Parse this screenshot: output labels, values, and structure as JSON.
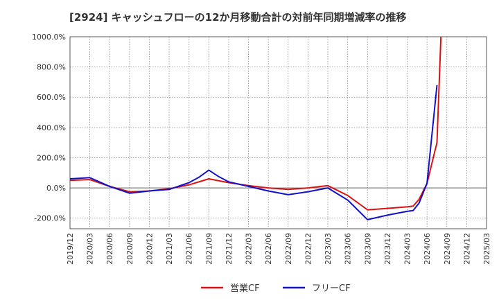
{
  "chart_data": {
    "type": "line",
    "title": "[2924]  キャッシュフローの12か月移動合計の対前年同期増減率の推移",
    "xlabel": "",
    "ylabel": "",
    "ylim": [
      -270,
      1000
    ],
    "yticks": [
      1000,
      800,
      600,
      400,
      200,
      0,
      -200
    ],
    "ytick_labels": [
      "1000.0%",
      "800.0%",
      "600.0%",
      "400.0%",
      "200.0%",
      "0.0%",
      "-200.0%"
    ],
    "x_tick_labels": [
      "2019/12",
      "2020/03",
      "2020/06",
      "2020/09",
      "2020/12",
      "2021/03",
      "2021/06",
      "2021/09",
      "2021/12",
      "2022/03",
      "2022/06",
      "2022/09",
      "2022/12",
      "2023/03",
      "2023/06",
      "2023/09",
      "2023/12",
      "2024/03",
      "2024/06",
      "2024/09",
      "2024/12",
      "2025/03"
    ],
    "grid": true,
    "legend_position": "bottom",
    "series": [
      {
        "name": "営業CF",
        "color": "#dd1111",
        "points": [
          [
            0,
            50
          ],
          [
            1,
            55
          ],
          [
            2,
            10
          ],
          [
            3,
            -25
          ],
          [
            4,
            -20
          ],
          [
            5,
            -5
          ],
          [
            6,
            20
          ],
          [
            7,
            60
          ],
          [
            8,
            35
          ],
          [
            9,
            15
          ],
          [
            10,
            0
          ],
          [
            11,
            -10
          ],
          [
            12,
            0
          ],
          [
            13,
            15
          ],
          [
            14,
            -50
          ],
          [
            15,
            -145
          ],
          [
            16,
            -135
          ],
          [
            17,
            -125
          ],
          [
            17.3,
            -120
          ],
          [
            17.6,
            -75
          ],
          [
            18.0,
            30
          ],
          [
            18.5,
            300
          ],
          [
            18.7,
            1000
          ]
        ]
      },
      {
        "name": "フリーCF",
        "color": "#1111cc",
        "points": [
          [
            0,
            60
          ],
          [
            1,
            68
          ],
          [
            2,
            10
          ],
          [
            3,
            -35
          ],
          [
            4,
            -20
          ],
          [
            5,
            -10
          ],
          [
            6,
            35
          ],
          [
            6.5,
            70
          ],
          [
            7,
            118
          ],
          [
            7.5,
            75
          ],
          [
            8,
            40
          ],
          [
            9,
            10
          ],
          [
            10,
            -20
          ],
          [
            11,
            -45
          ],
          [
            12,
            -25
          ],
          [
            13,
            0
          ],
          [
            14,
            -80
          ],
          [
            15,
            -210
          ],
          [
            16,
            -180
          ],
          [
            17,
            -155
          ],
          [
            17.3,
            -150
          ],
          [
            17.6,
            -100
          ],
          [
            18.0,
            30
          ],
          [
            18.5,
            680
          ]
        ]
      }
    ]
  }
}
